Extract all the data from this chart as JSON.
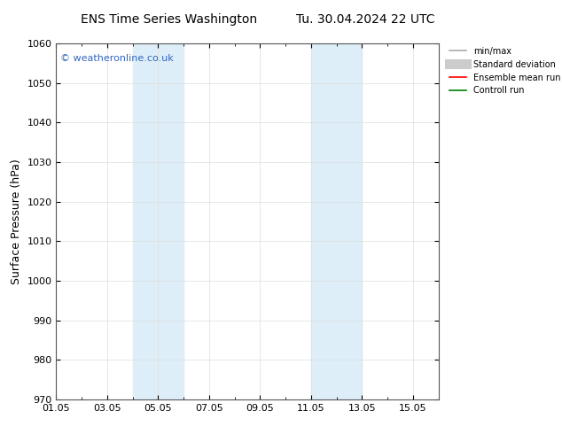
{
  "title_left": "ENS Time Series Washington",
  "title_right": "Tu. 30.04.2024 22 UTC",
  "ylabel": "Surface Pressure (hPa)",
  "watermark": "© weatheronline.co.uk",
  "ylim": [
    970,
    1060
  ],
  "yticks": [
    970,
    980,
    990,
    1000,
    1010,
    1020,
    1030,
    1040,
    1050,
    1060
  ],
  "xlim_start": 0,
  "xlim_end": 15,
  "xtick_positions": [
    0,
    2,
    4,
    6,
    8,
    10,
    12,
    14
  ],
  "xtick_labels": [
    "01.05",
    "03.05",
    "05.05",
    "07.05",
    "09.05",
    "11.05",
    "13.05",
    "15.05"
  ],
  "shade_bands": [
    {
      "xmin": 3.0,
      "xmax": 5.0
    },
    {
      "xmin": 10.0,
      "xmax": 12.0
    }
  ],
  "shade_color": "#ddeef8",
  "legend_items": [
    {
      "label": "min/max",
      "color": "#aaaaaa",
      "lw": 1.2,
      "linestyle": "-"
    },
    {
      "label": "Standard deviation",
      "color": "#cccccc",
      "lw": 8,
      "linestyle": "-"
    },
    {
      "label": "Ensemble mean run",
      "color": "red",
      "lw": 1.2,
      "linestyle": "-"
    },
    {
      "label": "Controll run",
      "color": "green",
      "lw": 1.2,
      "linestyle": "-"
    }
  ],
  "background_color": "#ffffff",
  "grid_color": "#dddddd",
  "title_fontsize": 10,
  "axis_label_fontsize": 9,
  "tick_fontsize": 8,
  "watermark_color": "#3366bb",
  "watermark_fontsize": 8
}
